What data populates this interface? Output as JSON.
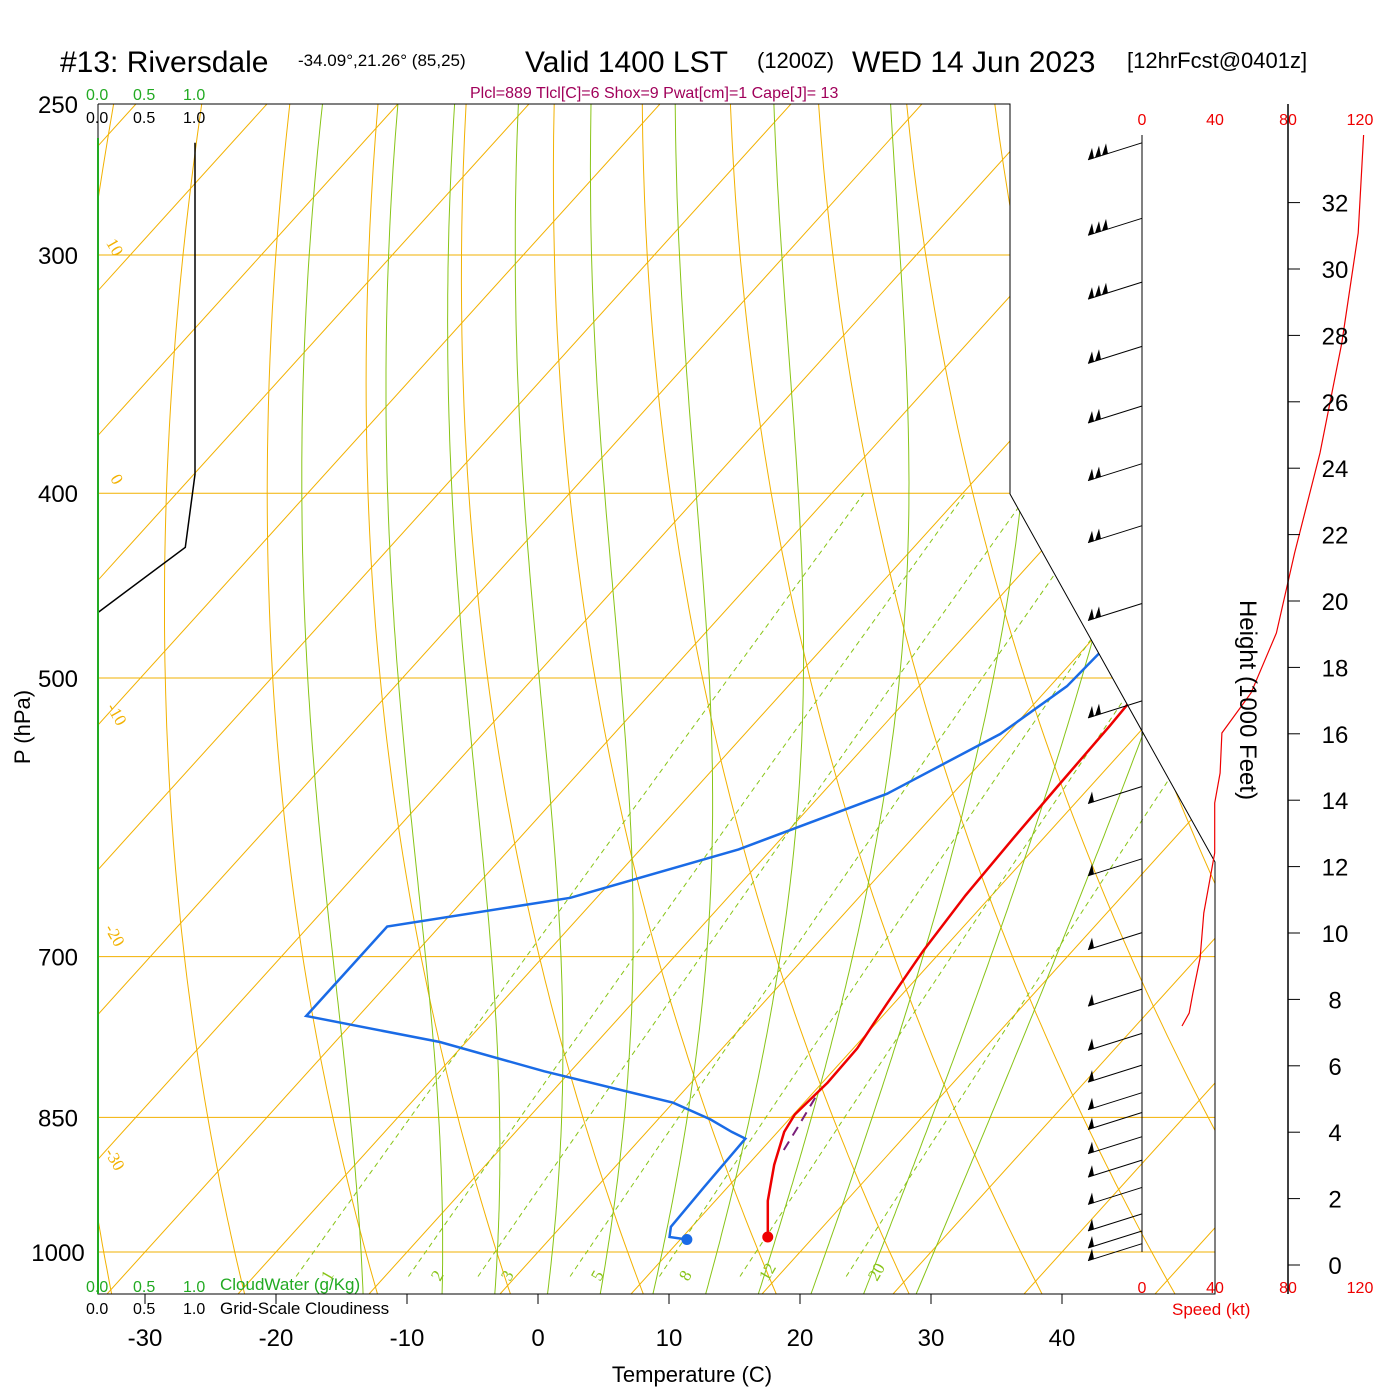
{
  "header": {
    "station": "#13: Riversdale",
    "coords": "-34.09°,21.26° (85,25)",
    "valid": "Valid 1400 LST",
    "utc": "(1200Z)",
    "date": "WED 14 Jun 2023",
    "forecast": "[12hrFcst@0401z]",
    "indices": "Plcl=889 Tlcl[C]=6 Shox=9 Pwat[cm]=1 Cape[J]= 13"
  },
  "colors": {
    "isotherm": "#f2b100",
    "dry_adiabat": "#f2b100",
    "moist_adiabat": "#88c417",
    "mixing_ratio": "#88c417",
    "temperature": "#ee0000",
    "dewpoint": "#1a6be6",
    "parcel": "#7a1f7a",
    "cloud_water": "#22aa22",
    "speed": "#ee0000",
    "indices": "#a0005a"
  },
  "cloud_scales": {
    "top_green": [
      "0.0",
      "0.5",
      "1.0"
    ],
    "top_black": [
      "0.0",
      "0.5",
      "1.0"
    ],
    "bottom_green": [
      "0.0",
      "0.5",
      "1.0"
    ],
    "bottom_black": [
      "0.0",
      "0.5",
      "1.0"
    ],
    "cloud_water_label": "CloudWater (g/Kg)",
    "cloudiness_label": "Grid-Scale Cloudiness"
  },
  "speed_axis": {
    "ticks": [
      "0",
      "40",
      "80",
      "120"
    ],
    "label": "Speed (kt)"
  },
  "height_axis": {
    "ticks": [
      0,
      2,
      4,
      6,
      8,
      10,
      12,
      14,
      16,
      18,
      20,
      22,
      24,
      26,
      28,
      30,
      32
    ],
    "label": "Height (1000 Feet)"
  },
  "chart_data": {
    "type": "line",
    "subtype": "skew-T log-P sounding",
    "xlabel": "Temperature (C)",
    "ylabel": "P (hPa)",
    "x_ticks": [
      -30,
      -20,
      -10,
      0,
      10,
      20,
      30,
      40
    ],
    "p_ticks": [
      250,
      300,
      400,
      500,
      700,
      850,
      1000
    ],
    "p_range": [
      250,
      1030
    ],
    "isotherm_labels": [
      {
        "t": 10,
        "p": 300,
        "text": "10"
      },
      {
        "t": 0,
        "p": 400,
        "text": "0"
      },
      {
        "t": -10,
        "p": 525,
        "text": "-10"
      },
      {
        "t": -20,
        "p": 690,
        "text": "-20"
      },
      {
        "t": -30,
        "p": 880,
        "text": "-30"
      },
      {
        "t": 0,
        "p": 340,
        "text": "0"
      },
      {
        "t": 10,
        "p": 420,
        "text": "10"
      },
      {
        "t": 20,
        "p": 500,
        "text": "20"
      },
      {
        "t": 30,
        "p": 580,
        "text": "30"
      }
    ],
    "mixing_ratio_labels": [
      "1",
      "2",
      "3",
      "5",
      "8",
      "12",
      "20"
    ],
    "series": [
      {
        "name": "temperature",
        "points": [
          [
            -7.5,
            262
          ],
          [
            -5.5,
            287
          ],
          [
            -3.0,
            318
          ],
          [
            1.5,
            365
          ],
          [
            3.5,
            398
          ],
          [
            5.0,
            428
          ],
          [
            6.0,
            463
          ],
          [
            7.0,
            498
          ],
          [
            7.3,
            530
          ],
          [
            7.5,
            570
          ],
          [
            7.7,
            606
          ],
          [
            8.0,
            650
          ],
          [
            8.6,
            695
          ],
          [
            9.5,
            742
          ],
          [
            10.3,
            782
          ],
          [
            10.4,
            815
          ],
          [
            10.1,
            847
          ],
          [
            10.5,
            865
          ],
          [
            12.0,
            900
          ],
          [
            14.0,
            940
          ],
          [
            16.5,
            982
          ]
        ]
      },
      {
        "name": "dewpoint",
        "points": [
          [
            -12,
            262
          ],
          [
            -10.5,
            284
          ],
          [
            -6,
            318
          ],
          [
            -1.5,
            357
          ],
          [
            0.5,
            390
          ],
          [
            1.2,
            427
          ],
          [
            1.7,
            462
          ],
          [
            1.3,
            505
          ],
          [
            -0.5,
            535
          ],
          [
            -5,
            575
          ],
          [
            -12.5,
            615
          ],
          [
            -22,
            652
          ],
          [
            -34,
            675
          ],
          [
            -34,
            752
          ],
          [
            -22,
            776
          ],
          [
            -12,
            804
          ],
          [
            0,
            835
          ],
          [
            4,
            852
          ],
          [
            6.5,
            865
          ],
          [
            8.0,
            872
          ],
          [
            8.2,
            925
          ],
          [
            8.4,
            970
          ],
          [
            9.0,
            982
          ],
          [
            10.5,
            985
          ]
        ]
      },
      {
        "name": "parcel",
        "points": [
          [
            10.5,
            830
          ],
          [
            11.2,
            860
          ],
          [
            11.8,
            888
          ]
        ]
      },
      {
        "name": "cloudiness",
        "points": [
          [
            1.0,
            262
          ],
          [
            1.0,
            391
          ],
          [
            0.9,
            427
          ],
          [
            0.0,
            462
          ]
        ]
      },
      {
        "name": "speed",
        "points": [
          [
            122,
            262
          ],
          [
            119,
            360
          ],
          [
            110,
            470
          ],
          [
            98,
            580
          ],
          [
            84,
            680
          ],
          [
            74,
            760
          ],
          [
            60,
            820
          ],
          [
            44,
            860
          ],
          [
            43,
            900
          ],
          [
            40,
            930
          ],
          [
            40,
            980
          ],
          [
            34,
            1040
          ],
          [
            32,
            1085
          ],
          [
            28,
            1120
          ],
          [
            26,
            1140
          ],
          [
            22,
            1153
          ]
        ]
      }
    ],
    "surface_markers": [
      {
        "name": "surface-temperature",
        "t": 16.5,
        "p": 982
      },
      {
        "name": "surface-dewpoint",
        "t": 10.5,
        "p": 985
      }
    ],
    "wind_barbs": [
      {
        "p": 262,
        "flags": 3
      },
      {
        "p": 287,
        "flags": 3
      },
      {
        "p": 310,
        "flags": 3
      },
      {
        "p": 335,
        "flags": 2
      },
      {
        "p": 360,
        "flags": 2
      },
      {
        "p": 386,
        "flags": 2
      },
      {
        "p": 416,
        "flags": 2
      },
      {
        "p": 457,
        "flags": 2
      },
      {
        "p": 514,
        "flags": 2
      },
      {
        "p": 570,
        "flags": 1
      },
      {
        "p": 622,
        "flags": 1
      },
      {
        "p": 680,
        "flags": 1
      },
      {
        "p": 728,
        "flags": 1
      },
      {
        "p": 768,
        "flags": 1
      },
      {
        "p": 798,
        "flags": 1
      },
      {
        "p": 825,
        "flags": 1
      },
      {
        "p": 845,
        "flags": 1
      },
      {
        "p": 870,
        "flags": 1
      },
      {
        "p": 895,
        "flags": 1
      },
      {
        "p": 925,
        "flags": 1
      },
      {
        "p": 955,
        "flags": 1
      },
      {
        "p": 975,
        "flags": 1
      },
      {
        "p": 990,
        "flags": 1
      }
    ]
  }
}
